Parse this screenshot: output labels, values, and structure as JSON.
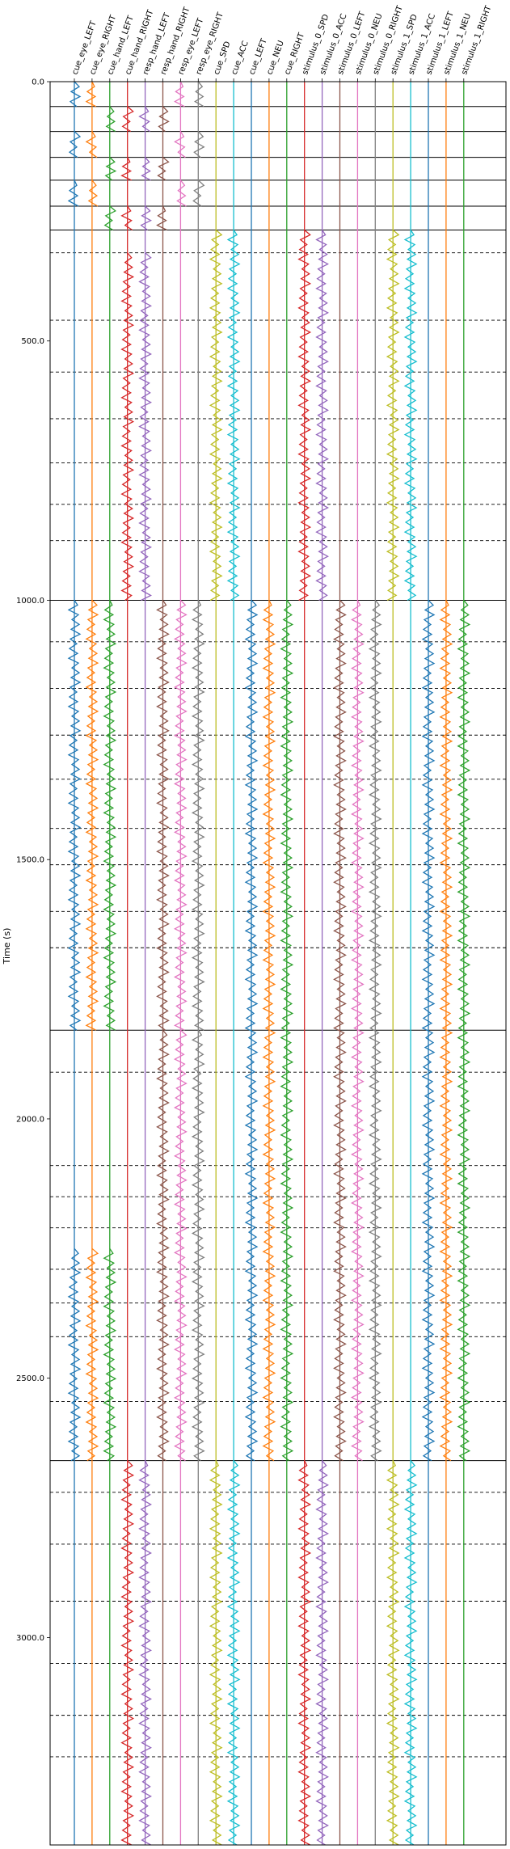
{
  "chart_data": {
    "type": "line",
    "title": "",
    "xlabel": "",
    "ylabel": "Time (s)",
    "ylim": [
      0,
      3400
    ],
    "y_inverted": true,
    "y_ticks": [
      0,
      500,
      1000,
      1500,
      2000,
      2500,
      3000
    ],
    "y_tick_labels": [
      "0.0",
      "500.0",
      "1000.0",
      "1500.0",
      "2000.0",
      "2500.0",
      "3000.0"
    ],
    "x_label_rotation_deg": 70,
    "grid": "horizontal event lines (solid = block boundaries, dashed = trial boundaries)",
    "solid_lines": [
      48,
      96,
      146,
      190,
      240,
      286,
      1000,
      1829,
      2659
    ],
    "dashed_lines": [
      330,
      460,
      560,
      650,
      735,
      815,
      885,
      1080,
      1170,
      1260,
      1345,
      1440,
      1510,
      1600,
      1670,
      1910,
      2090,
      2150,
      2210,
      2290,
      2355,
      2420,
      2545,
      2720,
      2820,
      2930,
      3050,
      3150,
      3230
    ],
    "series": [
      {
        "name": "cue_eye_LEFT",
        "color": "#1f77b4",
        "active": [
          [
            0,
            48
          ],
          [
            96,
            146
          ],
          [
            190,
            240
          ],
          [
            1000,
            1829
          ],
          [
            2250,
            2659
          ]
        ]
      },
      {
        "name": "cue_eye_RIGHT",
        "color": "#ff7f0e",
        "active": [
          [
            0,
            48
          ],
          [
            96,
            146
          ],
          [
            190,
            240
          ],
          [
            1000,
            1829
          ],
          [
            2250,
            2659
          ]
        ]
      },
      {
        "name": "cue_hand_LEFT",
        "color": "#2ca02c",
        "active": [
          [
            48,
            96
          ],
          [
            146,
            190
          ],
          [
            240,
            286
          ],
          [
            1000,
            1829
          ],
          [
            2250,
            2659
          ]
        ]
      },
      {
        "name": "cue_hand_RIGHT",
        "color": "#d62728",
        "active": [
          [
            48,
            96
          ],
          [
            146,
            190
          ],
          [
            240,
            286
          ],
          [
            330,
            1000
          ],
          [
            2659,
            3400
          ]
        ]
      },
      {
        "name": "resp_hand_LEFT",
        "color": "#9467bd",
        "active": [
          [
            48,
            96
          ],
          [
            146,
            190
          ],
          [
            240,
            286
          ],
          [
            330,
            1000
          ],
          [
            2659,
            3400
          ]
        ]
      },
      {
        "name": "resp_hand_RIGHT",
        "color": "#8c564b",
        "active": [
          [
            48,
            96
          ],
          [
            146,
            190
          ],
          [
            240,
            286
          ],
          [
            1000,
            1829
          ],
          [
            1829,
            2659
          ]
        ]
      },
      {
        "name": "resp_eye_LEFT",
        "color": "#e377c2",
        "active": [
          [
            0,
            48
          ],
          [
            96,
            146
          ],
          [
            190,
            240
          ],
          [
            1000,
            1829
          ],
          [
            1829,
            2659
          ]
        ]
      },
      {
        "name": "resp_eye_RIGHT",
        "color": "#7f7f7f",
        "active": [
          [
            0,
            48
          ],
          [
            96,
            146
          ],
          [
            190,
            240
          ],
          [
            1000,
            1829
          ],
          [
            1829,
            2659
          ]
        ]
      },
      {
        "name": "cue_SPD",
        "color": "#bcbd22",
        "active": [
          [
            286,
            1000
          ],
          [
            2659,
            3400
          ]
        ]
      },
      {
        "name": "cue_ACC",
        "color": "#17becf",
        "active": [
          [
            286,
            1000
          ],
          [
            2659,
            3400
          ]
        ]
      },
      {
        "name": "cue_LEFT",
        "color": "#1f77b4",
        "active": [
          [
            1000,
            2659
          ]
        ]
      },
      {
        "name": "cue_NEU",
        "color": "#ff7f0e",
        "active": [
          [
            1000,
            2659
          ]
        ]
      },
      {
        "name": "cue_RIGHT",
        "color": "#2ca02c",
        "active": [
          [
            1000,
            2659
          ]
        ]
      },
      {
        "name": "stimulus_0_SPD",
        "color": "#d62728",
        "active": [
          [
            286,
            1000
          ],
          [
            2659,
            3400
          ]
        ]
      },
      {
        "name": "stimulus_0_ACC",
        "color": "#9467bd",
        "active": [
          [
            286,
            1000
          ],
          [
            2659,
            3400
          ]
        ]
      },
      {
        "name": "stimulus_0_LEFT",
        "color": "#8c564b",
        "active": [
          [
            1000,
            2659
          ]
        ]
      },
      {
        "name": "stimulus_0_NEU",
        "color": "#e377c2",
        "active": [
          [
            1000,
            2659
          ]
        ]
      },
      {
        "name": "stimulus_0_RIGHT",
        "color": "#7f7f7f",
        "active": [
          [
            1000,
            2659
          ]
        ]
      },
      {
        "name": "stimulus_1_SPD",
        "color": "#bcbd22",
        "active": [
          [
            286,
            1000
          ],
          [
            2659,
            3400
          ]
        ]
      },
      {
        "name": "stimulus_1_ACC",
        "color": "#17becf",
        "active": [
          [
            286,
            1000
          ],
          [
            2659,
            3400
          ]
        ]
      },
      {
        "name": "stimulus_1_LEFT",
        "color": "#1f77b4",
        "active": [
          [
            1000,
            2659
          ]
        ]
      },
      {
        "name": "stimulus_1_NEU",
        "color": "#ff7f0e",
        "active": [
          [
            1000,
            2659
          ]
        ]
      },
      {
        "name": "stimulus_1_RIGHT",
        "color": "#2ca02c",
        "active": [
          [
            1000,
            2659
          ]
        ]
      }
    ]
  }
}
